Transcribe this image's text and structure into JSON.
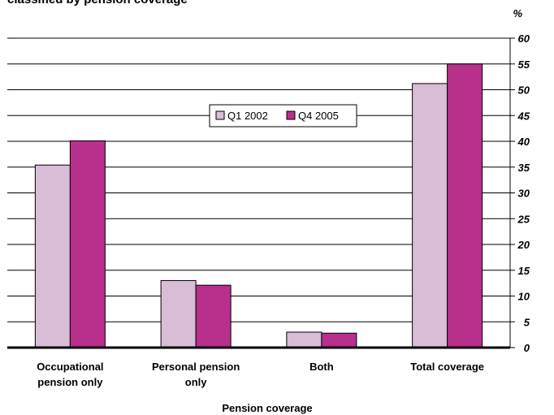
{
  "chart_data": {
    "type": "bar",
    "title": "classified by pension coverage",
    "categories": [
      [
        "Occupational",
        "pension only"
      ],
      [
        "Personal pension",
        "only"
      ],
      [
        "Both"
      ],
      [
        "Total coverage"
      ]
    ],
    "series": [
      {
        "name": "Q1 2002",
        "color": "#d9bcd6",
        "values": [
          35.4,
          13.0,
          3.0,
          51.2
        ]
      },
      {
        "name": "Q4 2005",
        "color": "#b8308c",
        "values": [
          40.1,
          12.1,
          2.8,
          55.0
        ]
      }
    ],
    "xlabel": "Pension coverage",
    "ylabel": "%",
    "ylim": [
      0,
      60
    ],
    "yticks": [
      "0",
      "5",
      "10",
      "15",
      "20",
      "25",
      "30",
      "35",
      "40",
      "45",
      "50",
      "55",
      "60"
    ],
    "y_axis_side": "right",
    "grid": true,
    "legend_position": "center"
  }
}
